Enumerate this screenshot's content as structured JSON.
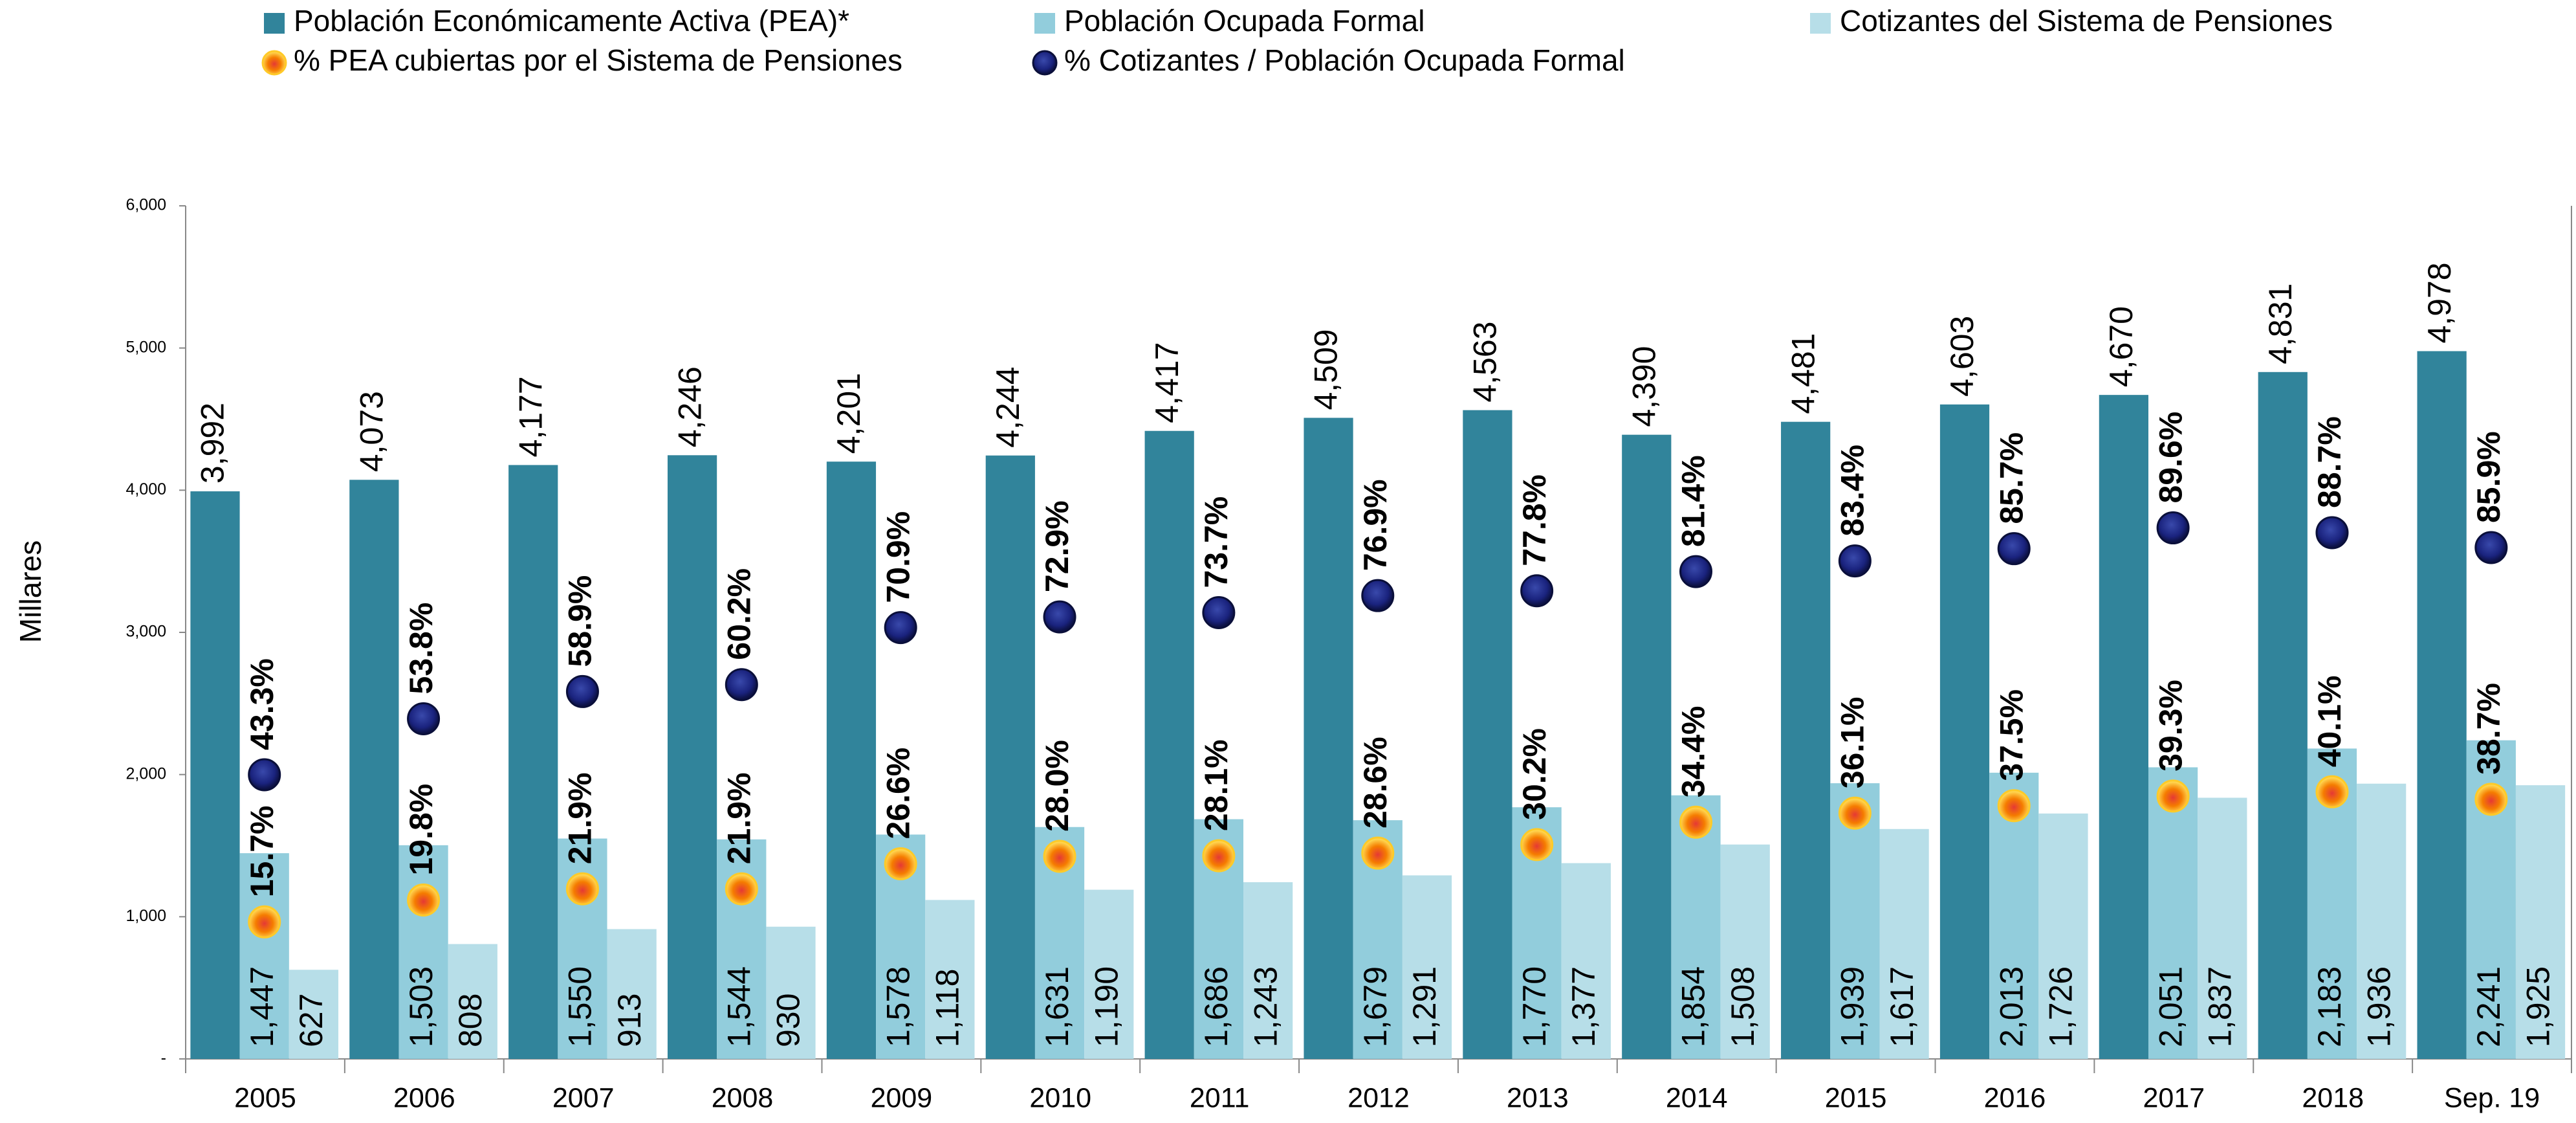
{
  "chart_data": {
    "type": "bar",
    "y_label": "Millares",
    "categories": [
      "2005",
      "2006",
      "2007",
      "2008",
      "2009",
      "2010",
      "2011",
      "2012",
      "2013",
      "2014",
      "2015",
      "2016",
      "2017",
      "2018",
      "Sep. 19"
    ],
    "ylim": [
      0,
      6000
    ],
    "yticks": [
      {
        "value": 0,
        "label": "-"
      },
      {
        "value": 1000,
        "label": "1,000"
      },
      {
        "value": 2000,
        "label": "2,000"
      },
      {
        "value": 3000,
        "label": "3,000"
      },
      {
        "value": 4000,
        "label": "4,000"
      },
      {
        "value": 5000,
        "label": "5,000"
      },
      {
        "value": 6000,
        "label": "6,000"
      }
    ],
    "y2lim": [
      -10,
      150
    ],
    "series": [
      {
        "name": "Población Económicamente Activa (PEA)*",
        "type": "bar",
        "color": "#31849b",
        "values": [
          3992,
          4073,
          4177,
          4246,
          4201,
          4244,
          4417,
          4509,
          4563,
          4390,
          4481,
          4603,
          4670,
          4831,
          4978
        ],
        "value_labels": [
          "3,992",
          "4,073",
          "4,177",
          "4,246",
          "4,201",
          "4,244",
          "4,417",
          "4,509",
          "4,563",
          "4,390",
          "4,481",
          "4,603",
          "4,670",
          "4,831",
          "4,978"
        ]
      },
      {
        "name": "Población Ocupada Formal",
        "type": "bar",
        "color": "#92cddc",
        "values": [
          1447,
          1503,
          1550,
          1544,
          1578,
          1631,
          1686,
          1679,
          1770,
          1854,
          1939,
          2013,
          2051,
          2183,
          2241
        ],
        "value_labels": [
          "1,447",
          "1,503",
          "1,550",
          "1,544",
          "1,578",
          "1,631",
          "1,686",
          "1,679",
          "1,770",
          "1,854",
          "1,939",
          "2,013",
          "2,051",
          "2,183",
          "2,241"
        ]
      },
      {
        "name": "Cotizantes del Sistema de Pensiones",
        "type": "bar",
        "color": "#b7dee8",
        "values": [
          627,
          808,
          913,
          930,
          1118,
          1190,
          1243,
          1291,
          1377,
          1508,
          1617,
          1726,
          1837,
          1936,
          1925
        ],
        "value_labels": [
          "627",
          "808",
          "913",
          "930",
          "1,118",
          "1,190",
          "1,243",
          "1,291",
          "1,377",
          "1,508",
          "1,617",
          "1,726",
          "1,837",
          "1,936",
          "1,925"
        ]
      },
      {
        "name": "% PEA cubiertas por el Sistema de Pensiones",
        "type": "scatter",
        "axis": "y2",
        "color": "#f57c00",
        "values": [
          15.7,
          19.8,
          21.9,
          21.9,
          26.6,
          28.0,
          28.1,
          28.6,
          30.2,
          34.4,
          36.1,
          37.5,
          39.3,
          40.1,
          38.7
        ],
        "value_labels": [
          "15.7%",
          "19.8%",
          "21.9%",
          "21.9%",
          "26.6%",
          "28.0%",
          "28.1%",
          "28.6%",
          "30.2%",
          "34.4%",
          "36.1%",
          "37.5%",
          "39.3%",
          "40.1%",
          "38.7%"
        ]
      },
      {
        "name": "% Cotizantes / Población Ocupada Formal",
        "type": "scatter",
        "axis": "y2",
        "color": "#1a237e",
        "values": [
          43.3,
          53.8,
          58.9,
          60.2,
          70.9,
          72.9,
          73.7,
          76.9,
          77.8,
          81.4,
          83.4,
          85.7,
          89.6,
          88.7,
          85.9
        ],
        "value_labels": [
          "43.3%",
          "53.8%",
          "58.9%",
          "60.2%",
          "70.9%",
          "72.9%",
          "73.7%",
          "76.9%",
          "77.8%",
          "81.4%",
          "83.4%",
          "85.7%",
          "89.6%",
          "88.7%",
          "85.9%"
        ]
      }
    ]
  }
}
